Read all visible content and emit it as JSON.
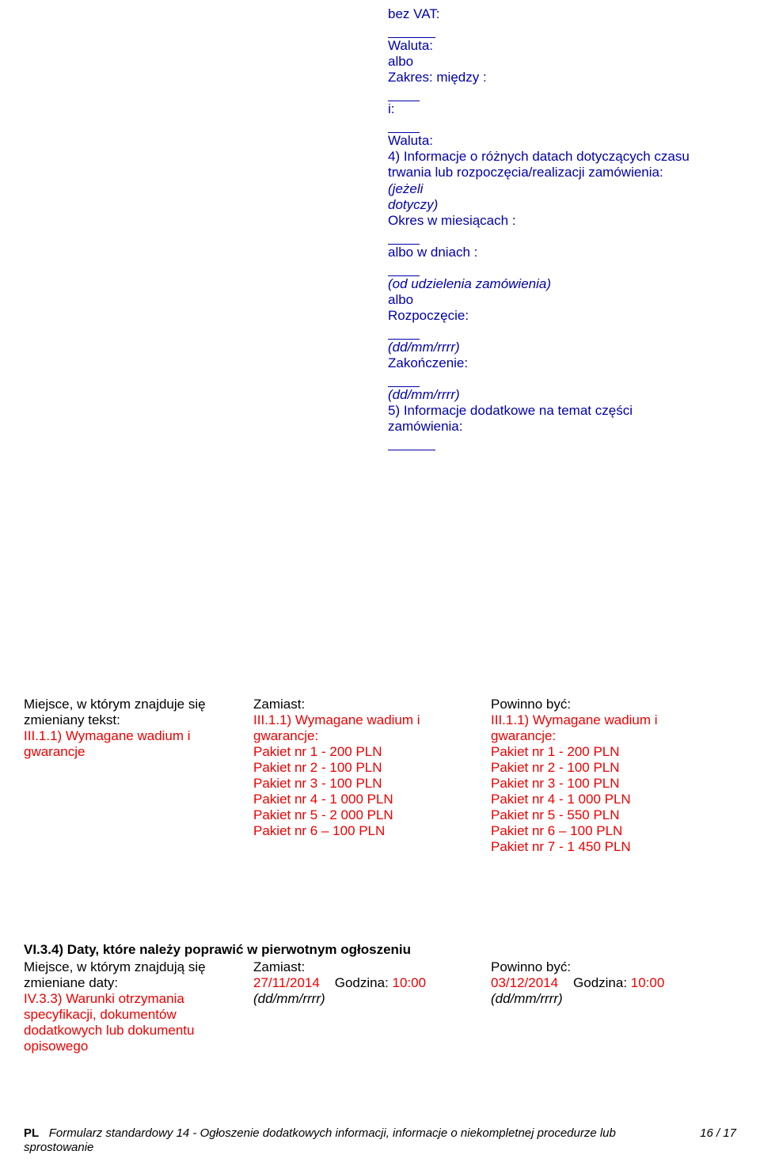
{
  "top": {
    "bez_vat": "bez VAT:",
    "waluta1": "Waluta:",
    "albo1": "albo",
    "zakres": "Zakres: między :",
    "i": "i:",
    "waluta2": "Waluta:",
    "line4": "4) Informacje o różnych datach dotyczących czasu trwania lub rozpoczęcia/realizacji zamówienia:",
    "jezeli": "(jeżeli",
    "dotyczy": "dotyczy)",
    "okres": "Okres w miesiącach :",
    "albo_dniach": "albo w dniach :",
    "od_udz": "(od udzielenia zamówienia)",
    "albo2": "albo",
    "rozpo": "Rozpoczęcie:",
    "ddmm1": "(dd/mm/rrrr)",
    "zakon": "Zakończenie:",
    "ddmm2": "(dd/mm/rrrr)",
    "line5": "5) Informacje dodatkowe na temat części zamówienia:"
  },
  "mid": {
    "left": {
      "l1": "Miejsce, w którym znajduje się",
      "l2": "zmieniany tekst:",
      "l3": "III.1.1) Wymagane wadium i",
      "l4": "gwarancje"
    },
    "zamiast_label": "Zamiast:",
    "powinno_label": "Powinno być:",
    "center": [
      "III.1.1) Wymagane wadium i",
      "gwarancje:",
      "Pakiet nr 1 - 200 PLN",
      "Pakiet nr 2 - 100 PLN",
      "Pakiet nr 3 - 100 PLN",
      "Pakiet nr 4 - 1 000 PLN",
      "Pakiet nr 5 - 2 000 PLN",
      "Pakiet nr 6 – 100 PLN"
    ],
    "right": [
      "III.1.1) Wymagane wadium i",
      "gwarancje:",
      "Pakiet nr 1 - 200 PLN",
      "Pakiet nr 2 - 100 PLN",
      "Pakiet nr 3 - 100 PLN",
      "Pakiet nr 4 - 1 000 PLN",
      "Pakiet nr 5 - 550 PLN",
      "Pakiet nr 6 – 100 PLN",
      "Pakiet nr 7 - 1 450 PLN"
    ]
  },
  "lower": {
    "heading": "VI.3.4) Daty, które należy poprawić w pierwotnym ogłoszeniu",
    "left": {
      "l1": "Miejsce, w którym znajdują się",
      "l2": "zmieniane daty:",
      "l3": "IV.3.3) Warunki otrzymania",
      "l4": "specyfikacji, dokumentów",
      "l5": "dodatkowych lub dokumentu",
      "l6": "opisowego"
    },
    "zamiast_label": "Zamiast:",
    "powinno_label": "Powinno być:",
    "center_date": "27/11/2014",
    "right_date": "03/12/2014",
    "godzina_lbl": "Godzina:",
    "godzina_val": "10:00",
    "ddmm": "(dd/mm/rrrr)"
  },
  "footer": {
    "pl": "PL",
    "text": "Formularz standardowy 14 - Ogłoszenie dodatkowych informacji, informacje o niekompletnej procedurze lub sprostowanie",
    "page": "16 / 17"
  }
}
